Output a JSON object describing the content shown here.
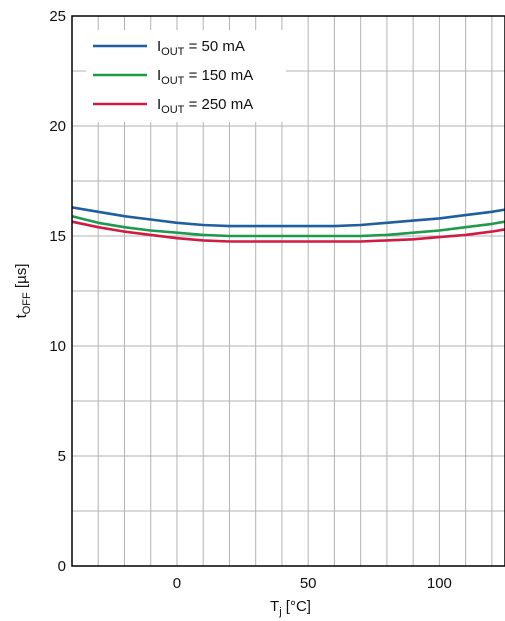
{
  "chart_data": {
    "type": "line",
    "xlabel": {
      "main": "T",
      "sub": "j",
      "unit": " [°C]"
    },
    "ylabel": {
      "main": "t",
      "sub": "OFF",
      "unit": " [µs]"
    },
    "xlim": [
      -40,
      125
    ],
    "ylim": [
      0,
      25
    ],
    "x_ticks": [
      0,
      50,
      100
    ],
    "y_ticks": [
      0,
      5,
      10,
      15,
      20,
      25
    ],
    "x_minor_step": 10,
    "y_minor_step": 2.5,
    "grid": true,
    "legend_position": "top-left",
    "series": [
      {
        "name": "I_OUT = 50 mA",
        "label": {
          "main": "I",
          "sub": "OUT",
          "rest": " = 50 mA"
        },
        "color": "#1f5fa0",
        "x": [
          -40,
          -30,
          -20,
          -10,
          0,
          10,
          20,
          30,
          40,
          50,
          60,
          70,
          80,
          90,
          100,
          110,
          120,
          125
        ],
        "y": [
          16.3,
          16.1,
          15.9,
          15.75,
          15.6,
          15.5,
          15.45,
          15.45,
          15.45,
          15.45,
          15.45,
          15.5,
          15.6,
          15.7,
          15.8,
          15.95,
          16.1,
          16.2
        ]
      },
      {
        "name": "I_OUT = 150 mA",
        "label": {
          "main": "I",
          "sub": "OUT",
          "rest": " = 150 mA"
        },
        "color": "#1f9a4d",
        "x": [
          -40,
          -30,
          -20,
          -10,
          0,
          10,
          20,
          30,
          40,
          50,
          60,
          70,
          80,
          90,
          100,
          110,
          120,
          125
        ],
        "y": [
          15.9,
          15.6,
          15.4,
          15.25,
          15.15,
          15.05,
          15.0,
          15.0,
          15.0,
          15.0,
          15.0,
          15.0,
          15.05,
          15.15,
          15.25,
          15.4,
          15.55,
          15.65
        ]
      },
      {
        "name": "I_OUT = 250 mA",
        "label": {
          "main": "I",
          "sub": "OUT",
          "rest": " = 250 mA"
        },
        "color": "#d01c45",
        "x": [
          -40,
          -30,
          -20,
          -10,
          0,
          10,
          20,
          30,
          40,
          50,
          60,
          70,
          80,
          90,
          100,
          110,
          120,
          125
        ],
        "y": [
          15.65,
          15.4,
          15.2,
          15.05,
          14.9,
          14.8,
          14.75,
          14.75,
          14.75,
          14.75,
          14.75,
          14.75,
          14.8,
          14.85,
          14.95,
          15.05,
          15.2,
          15.3
        ]
      }
    ]
  }
}
